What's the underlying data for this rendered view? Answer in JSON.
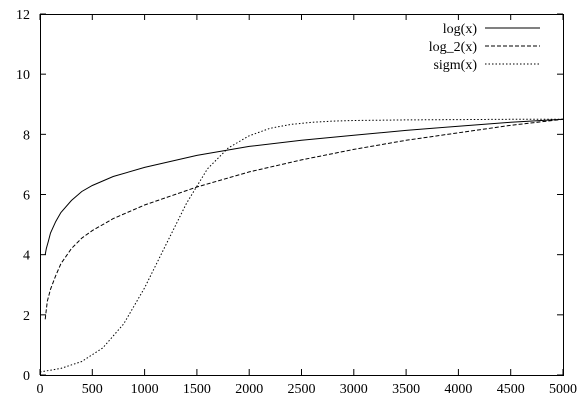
{
  "chart_data": {
    "type": "line",
    "title": "",
    "xlabel": "",
    "ylabel": "",
    "xlim": [
      0,
      5000
    ],
    "ylim": [
      0,
      12
    ],
    "xticks": [
      0,
      500,
      1000,
      1500,
      2000,
      2500,
      3000,
      3500,
      4000,
      4500,
      5000
    ],
    "yticks": [
      0,
      2,
      4,
      6,
      8,
      10,
      12
    ],
    "grid": false,
    "legend_position": "top-right",
    "series": [
      {
        "name": "log(x)",
        "style": "solid",
        "x": [
          50,
          60,
          80,
          100,
          150,
          200,
          300,
          400,
          500,
          700,
          1000,
          1500,
          2000,
          2500,
          3000,
          3500,
          4000,
          4500,
          5000
        ],
        "y": [
          4.0,
          4.2,
          4.45,
          4.72,
          5.1,
          5.4,
          5.8,
          6.1,
          6.3,
          6.6,
          6.9,
          7.3,
          7.6,
          7.8,
          7.97,
          8.13,
          8.27,
          8.4,
          8.5
        ]
      },
      {
        "name": "log_2(x)",
        "style": "dashed",
        "x": [
          50,
          70,
          100,
          150,
          200,
          300,
          400,
          500,
          700,
          1000,
          1500,
          2000,
          2500,
          3000,
          3500,
          4000,
          4500,
          5000
        ],
        "y": [
          1.85,
          2.45,
          2.85,
          3.3,
          3.7,
          4.2,
          4.55,
          4.8,
          5.2,
          5.65,
          6.25,
          6.75,
          7.15,
          7.5,
          7.8,
          8.05,
          8.3,
          8.5
        ]
      },
      {
        "name": "sigm(x)",
        "style": "dotted",
        "x": [
          0,
          200,
          400,
          600,
          800,
          1000,
          1200,
          1400,
          1600,
          1800,
          2000,
          2200,
          2400,
          2600,
          2800,
          3000,
          3500,
          4000,
          4500,
          5000
        ],
        "y": [
          0.1,
          0.22,
          0.45,
          0.9,
          1.7,
          2.9,
          4.3,
          5.7,
          6.85,
          7.55,
          7.95,
          8.2,
          8.33,
          8.4,
          8.44,
          8.46,
          8.48,
          8.49,
          8.5,
          8.5
        ]
      }
    ]
  }
}
